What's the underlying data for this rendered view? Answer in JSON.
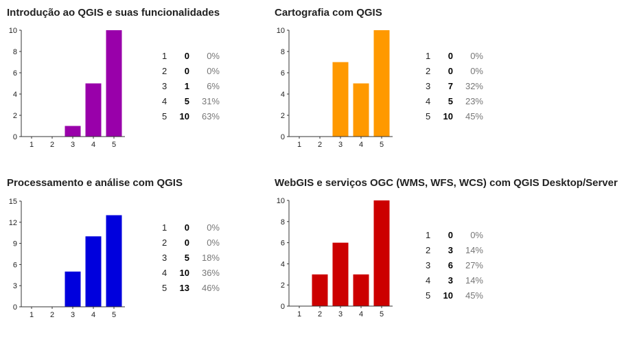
{
  "chart_data": [
    {
      "type": "bar",
      "title": "Introdução ao QGIS e suas funcionalidades",
      "categories": [
        "1",
        "2",
        "3",
        "4",
        "5"
      ],
      "values": [
        0,
        0,
        1,
        5,
        10
      ],
      "ylim": [
        0,
        10
      ],
      "yticks": [
        0,
        2,
        4,
        6,
        8,
        10
      ],
      "color": "#9900AA",
      "table": [
        {
          "cat": "1",
          "count": "0",
          "pct": "0%"
        },
        {
          "cat": "2",
          "count": "0",
          "pct": "0%"
        },
        {
          "cat": "3",
          "count": "1",
          "pct": "6%"
        },
        {
          "cat": "4",
          "count": "5",
          "pct": "31%"
        },
        {
          "cat": "5",
          "count": "10",
          "pct": "63%"
        }
      ]
    },
    {
      "type": "bar",
      "title": "Cartografia com QGIS",
      "categories": [
        "1",
        "2",
        "3",
        "4",
        "5"
      ],
      "values": [
        0,
        0,
        7,
        5,
        10
      ],
      "ylim": [
        0,
        10
      ],
      "yticks": [
        0,
        2,
        4,
        6,
        8,
        10
      ],
      "color": "#FF9900",
      "table": [
        {
          "cat": "1",
          "count": "0",
          "pct": "0%"
        },
        {
          "cat": "2",
          "count": "0",
          "pct": "0%"
        },
        {
          "cat": "3",
          "count": "7",
          "pct": "32%"
        },
        {
          "cat": "4",
          "count": "5",
          "pct": "23%"
        },
        {
          "cat": "5",
          "count": "10",
          "pct": "45%"
        }
      ]
    },
    {
      "type": "bar",
      "title": "Processamento e análise com QGIS",
      "categories": [
        "1",
        "2",
        "3",
        "4",
        "5"
      ],
      "values": [
        0,
        0,
        5,
        10,
        13
      ],
      "ylim": [
        0,
        15
      ],
      "yticks": [
        0,
        3,
        6,
        9,
        12,
        15
      ],
      "color": "#0000DD",
      "table": [
        {
          "cat": "1",
          "count": "0",
          "pct": "0%"
        },
        {
          "cat": "2",
          "count": "0",
          "pct": "0%"
        },
        {
          "cat": "3",
          "count": "5",
          "pct": "18%"
        },
        {
          "cat": "4",
          "count": "10",
          "pct": "36%"
        },
        {
          "cat": "5",
          "count": "13",
          "pct": "46%"
        }
      ]
    },
    {
      "type": "bar",
      "title": "WebGIS e serviços OGC (WMS, WFS, WCS) com QGIS Desktop/Server",
      "categories": [
        "1",
        "2",
        "3",
        "4",
        "5"
      ],
      "values": [
        0,
        3,
        6,
        3,
        10
      ],
      "ylim": [
        0,
        10
      ],
      "yticks": [
        0,
        2,
        4,
        6,
        8,
        10
      ],
      "color": "#CC0000",
      "table": [
        {
          "cat": "1",
          "count": "0",
          "pct": "0%"
        },
        {
          "cat": "2",
          "count": "3",
          "pct": "14%"
        },
        {
          "cat": "3",
          "count": "6",
          "pct": "27%"
        },
        {
          "cat": "4",
          "count": "3",
          "pct": "14%"
        },
        {
          "cat": "5",
          "count": "10",
          "pct": "45%"
        }
      ]
    }
  ]
}
